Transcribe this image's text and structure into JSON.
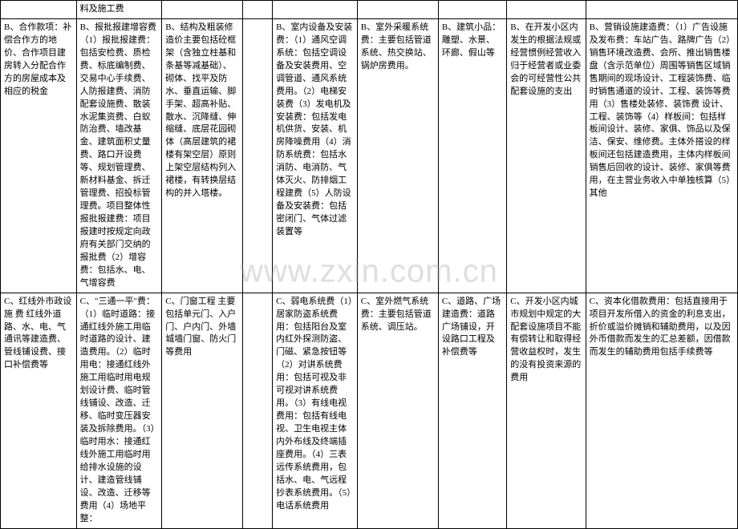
{
  "watermark": "www.zxin.com.cn",
  "table": {
    "border_color": "#000000",
    "background_color": "#ffffff",
    "text_color": "#000000",
    "font_size_pt": 8,
    "rows": [
      [
        "",
        "料及施工费",
        "",
        "",
        "",
        "",
        "",
        "",
        ""
      ],
      [
        "B、合作款项：补偿合作方的地价、合作项目建房转入分配合作方的房屋成本及相应的税金",
        "B、报批报建增容费（1）报批报建费：包括安检费、质检费、标底编制费、交易中心手续费、人防报建费、消防配套设施费、散装水泥集资费、白蚁防治费、墙改基金、建筑面积丈量费、路口开设费等、规划管理费、新材料基金、拆迁管理费、招投标管理费。项目整体性报批报建费：项目报建时按规定向政府有关部门交纳的报批费（2）增容费：包括水、电、气增容费",
        "B、结构及粗装修造价主要包括砼框架（含独立柱基和条基等减基础）、砌体、找平及防水、垂直运输、脚手架、超高补贴、散水、沉降缝、伸缩缝、底层花园砌体（高层建筑的裙楼有架空层）原则上架空层结构列入裙楼，有转换层结构的并入塔楼。",
        "",
        "B、室内设备及安装费：（1）通风空调系统：包括空调设备及安装费用、空调管道、通风系统费用。（2）电梯安装费（3）发电机及安装费：包括发电机供货、安装、机房降噪费用（4）消防系统费：包括水消防、电消防、气体灭火、防排烟工程建费（5）人防设备及安装费：包括密闭门、气体过滤装置等",
        "B、室外采暖系统费：主要包括管道系统、热交换站、锅炉房费用。",
        "B、建筑小品：雕塑、水景、环廊、假山等",
        "B、在开发小区内发生的根据法规或经营惯例经营收入归于经营者或业委会的可经营性公共配套设施的支出",
        "B、营销设施建造费：（1）广告设施及发布费：车站广告、路牌广告（2）销售环境改造费、会所、推出销售楼盘（含示范单位）周围等销售区域销售期间的现场设计、工程装饰费、临时销售通道的设计、工程、装饰等费用（3）售楼处装修、装饰费 设计、工程、装饰等（4）样板间：包括样板间设计、装修、家俱、饰品以及保洁、保安、维修费。主体外搭设的样板间还包括建造费用，主体内样板间销售后回收的设计、装修、家俱等费用，在主营业务收入中单独核算（5）其他"
      ],
      [
        "C、红线外市政设施 费 红线外道路、水、电、气通讯等建造费、管线铺设费、接口补偿费等",
        "C、\"三通一平\"费：（1）临时道路：接通红线外施工用临时道路的设计、建造费用。（2）临时用电：接通红线外施工用临时用电规划设计费、临时管线铺设、改造、迁移、临时变压器安装及拆除费用。（3）临时用水：接通红线外施工用临时用给排水设施的设计、建造管线铺设、改造、迁移等费用（4）场地平整：",
        "C、门窗工程 主要包括单元门、入户门、户内门、外墙城墙门窗、防火门等费用",
        "",
        "C、弱电系统费（1）居家防盗系统费用：包括阳台及室内红外探测防盗、门磁、紧急按钮等（2）对讲系统费用：包括可视及非可视对讲系统费用。（3）有线电视费用：包括有线电视、卫生电视主体内外布线及终端插座费用。（4）三表远传系统费用，包括水、电、气远程抄表系统费用。（5）电话系统费用",
        "C、室外燃气系统费：主要包括管道系统、调压站。",
        "C、道路、广场建造费：道路广场铺设，开设路口工程及补偿费等",
        "C、开发小区内城市规划中规定的大配套设施项目不能有偿转让和取得经营收益权时，发生的没有投资来源的费用",
        "C、资本化借款费用：包括直接用于项目开发所借入的资金的利息支出，折价或溢价摊销和辅助费用，以及因外币借款而发生的汇总差额，因借款而发生的辅助费用包括手续费等"
      ]
    ]
  }
}
